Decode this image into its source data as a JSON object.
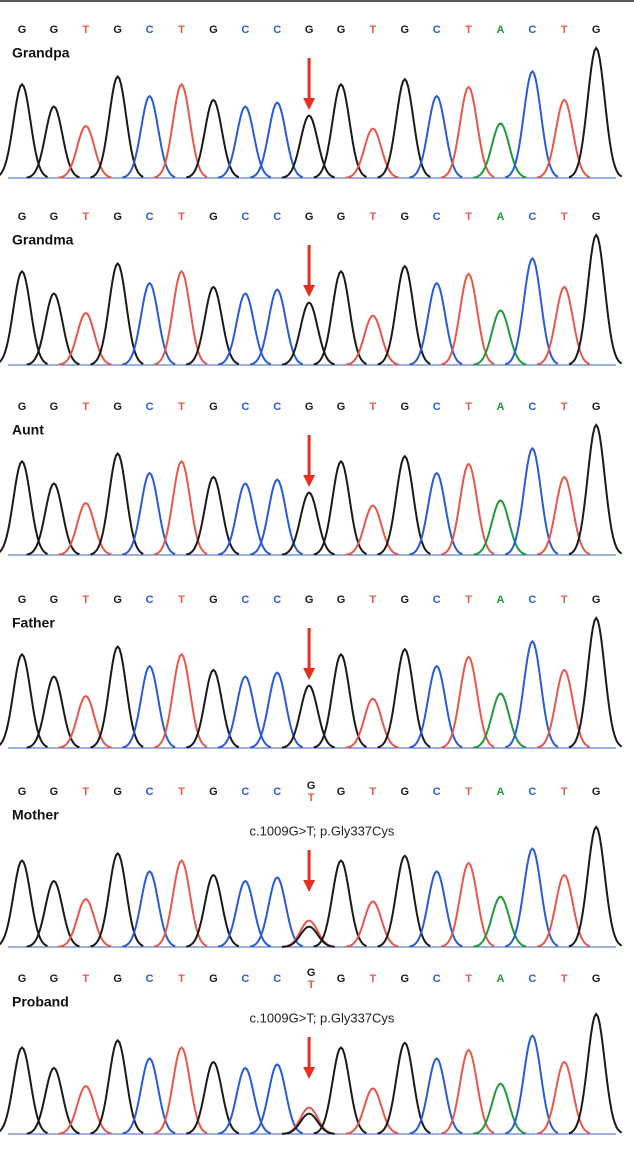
{
  "base_colors": {
    "G": "#1a1a1a",
    "T": "#e8584a",
    "C": "#2a5bd7",
    "A": "#1f9a3a"
  },
  "panels": [
    {
      "label": "Grandpa",
      "bases": [
        "G",
        "G",
        "T",
        "G",
        "C",
        "T",
        "G",
        "C",
        "C",
        "G",
        "G",
        "T",
        "G",
        "C",
        "T",
        "A",
        "C",
        "T",
        "G"
      ]
    },
    {
      "label": "Grandma",
      "bases": [
        "G",
        "G",
        "T",
        "G",
        "C",
        "T",
        "G",
        "C",
        "C",
        "G",
        "G",
        "T",
        "G",
        "C",
        "T",
        "A",
        "C",
        "T",
        "G"
      ]
    },
    {
      "label": "Aunt",
      "bases": [
        "G",
        "G",
        "T",
        "G",
        "C",
        "T",
        "G",
        "C",
        "C",
        "G",
        "G",
        "T",
        "G",
        "C",
        "T",
        "A",
        "C",
        "T",
        "G"
      ]
    },
    {
      "label": "Father",
      "bases": [
        "G",
        "G",
        "T",
        "G",
        "C",
        "T",
        "G",
        "C",
        "C",
        "G",
        "G",
        "T",
        "G",
        "C",
        "T",
        "A",
        "C",
        "T",
        "G"
      ]
    },
    {
      "label": "Mother",
      "bases": [
        "G",
        "G",
        "T",
        "G",
        "C",
        "T",
        "G",
        "C",
        "C",
        [
          "G",
          "T"
        ],
        "G",
        "T",
        "G",
        "C",
        "T",
        "A",
        "C",
        "T",
        "G"
      ],
      "annotation": "c.1009G>T; p.Gly337Cys"
    },
    {
      "label": "Proband",
      "bases": [
        "G",
        "G",
        "T",
        "G",
        "C",
        "T",
        "G",
        "C",
        "C",
        [
          "G",
          "T"
        ],
        "G",
        "T",
        "G",
        "C",
        "T",
        "A",
        "C",
        "T",
        "G"
      ],
      "annotation": "c.1009G>T; p.Gly337Cys"
    }
  ]
}
